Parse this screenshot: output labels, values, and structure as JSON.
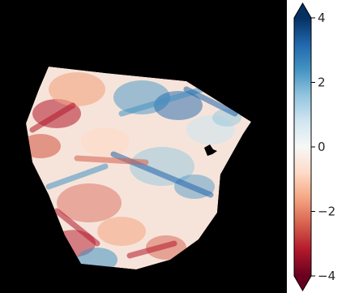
{
  "chart_data": {
    "type": "heatmap",
    "title": "",
    "xlabel": "",
    "ylabel": "",
    "background": "#000000",
    "colormap": "RdBu",
    "colormap_stops": [
      "#67001f",
      "#b2182b",
      "#d6604d",
      "#f4a582",
      "#fddbc7",
      "#f7f7f7",
      "#d1e5f0",
      "#92c5de",
      "#4393c3",
      "#2166ac",
      "#053061"
    ],
    "color_range": [
      -4,
      4
    ],
    "colorbar": {
      "extend": "both",
      "ticks": [
        4,
        2,
        0,
        -2,
        -4
      ],
      "tick_labels": [
        "4",
        "2",
        "0",
        "−2",
        "−4"
      ]
    },
    "axes_visible": false
  }
}
